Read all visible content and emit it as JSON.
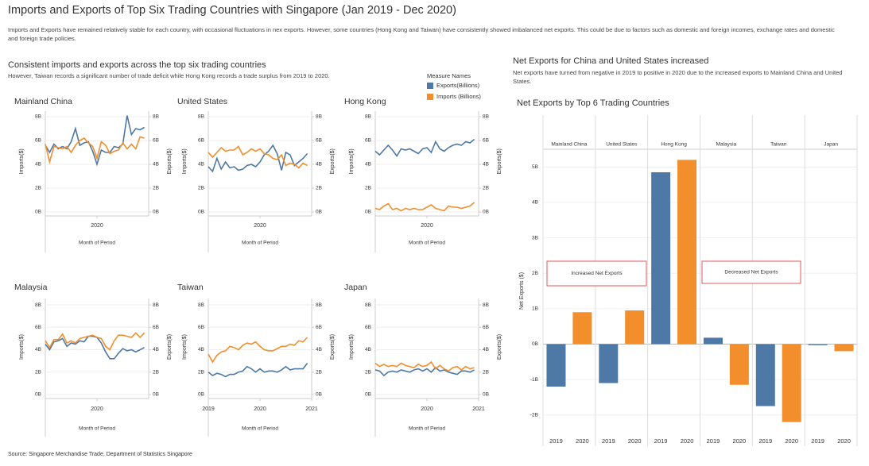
{
  "header": {
    "title": "Imports and Exports of Top Six Trading Countries with Singapore (Jan 2019 - Dec 2020)",
    "description": "Imports and Exports have remained relatively stable for each country, with occasional fluctuations in nex exports. However, some countries (Hong Kong and Taiwan) have consistently showed imbalanced net exports. This could be due to factors such as domestic and foreign incomes, exchange rates and domestic and foreign trade policies."
  },
  "left_section": {
    "title": "Consistent imports and exports across the top six trading countries",
    "subtitle": "However, Taiwan records a significant number of trade deficit while Hong Kong records a trade surplus from 2019 to 2020."
  },
  "legend": {
    "title": "Measure Names",
    "items": [
      {
        "name": "Exports(Billions)",
        "color": "#4e79a7"
      },
      {
        "name": "Imports (Billions)",
        "color": "#f28e2b"
      }
    ]
  },
  "right_section": {
    "title": "Net Exports for China and United States increased",
    "subtitle": "Net exports have turned from negative in 2019 to positive in 2020 due to the increased exports to Mainland China and United States."
  },
  "chart_data": [
    {
      "type": "line",
      "title": "Mainland China",
      "xlabel": "Month of Period",
      "ylabel": "Imports($)",
      "y2label": "Exports($)",
      "xlim": [
        2019,
        2021
      ],
      "xticks": [
        2020
      ],
      "ylim": [
        0,
        8.5
      ],
      "yticks": [
        {
          "value": 0,
          "label": "0B"
        },
        {
          "value": 2,
          "label": "2B"
        },
        {
          "value": 4,
          "label": "4B"
        },
        {
          "value": 6,
          "label": "6B"
        },
        {
          "value": 8,
          "label": "8B"
        }
      ],
      "y2lim": [
        0,
        8.5
      ],
      "y2ticks": [
        {
          "value": 0,
          "label": "0B"
        },
        {
          "value": 2,
          "label": "2B"
        },
        {
          "value": 4,
          "label": "4B"
        },
        {
          "value": 6,
          "label": "6B"
        },
        {
          "value": 8,
          "label": "8B"
        }
      ],
      "grid": true,
      "x": [
        2019.0,
        2019.083,
        2019.167,
        2019.25,
        2019.333,
        2019.417,
        2019.5,
        2019.583,
        2019.667,
        2019.75,
        2019.833,
        2019.917,
        2020.0,
        2020.083,
        2020.167,
        2020.25,
        2020.333,
        2020.417,
        2020.5,
        2020.583,
        2020.667,
        2020.75,
        2020.833,
        2020.917
      ],
      "series": [
        {
          "color": "#4e79a7",
          "axis": "y2",
          "values": [
            5.6,
            5.0,
            5.7,
            5.3,
            5.5,
            5.3,
            5.9,
            7.0,
            5.6,
            5.8,
            5.9,
            5.1,
            4.0,
            5.2,
            5.0,
            5.0,
            5.5,
            5.4,
            5.7,
            8.1,
            6.5,
            7.0,
            6.9,
            7.1
          ]
        },
        {
          "color": "#f28e2b",
          "values": [
            5.7,
            4.2,
            5.5,
            5.4,
            5.3,
            5.5,
            5.0,
            5.6,
            6.0,
            6.2,
            5.8,
            5.5,
            4.5,
            5.9,
            5.6,
            4.9,
            5.1,
            5.2,
            5.8,
            5.3,
            5.7,
            5.3,
            6.3,
            6.2
          ]
        }
      ]
    },
    {
      "type": "line",
      "title": "United States",
      "xlabel": "Month of Period",
      "ylabel": "Imports($)",
      "y2label": "Exports($)",
      "xlim": [
        2019,
        2021
      ],
      "xticks": [
        2020
      ],
      "ylim": [
        0,
        8.5
      ],
      "yticks": [
        {
          "value": 0,
          "label": "0B"
        },
        {
          "value": 2,
          "label": "2B"
        },
        {
          "value": 4,
          "label": "4B"
        },
        {
          "value": 6,
          "label": "6B"
        },
        {
          "value": 8,
          "label": "8B"
        }
      ],
      "y2lim": [
        0,
        8.5
      ],
      "y2ticks": [
        {
          "value": 0,
          "label": "0B"
        },
        {
          "value": 2,
          "label": "2B"
        },
        {
          "value": 4,
          "label": "4B"
        },
        {
          "value": 6,
          "label": "6B"
        },
        {
          "value": 8,
          "label": "8B"
        }
      ],
      "grid": true,
      "x": [
        2019.0,
        2019.083,
        2019.167,
        2019.25,
        2019.333,
        2019.417,
        2019.5,
        2019.583,
        2019.667,
        2019.75,
        2019.833,
        2019.917,
        2020.0,
        2020.083,
        2020.167,
        2020.25,
        2020.333,
        2020.417,
        2020.5,
        2020.583,
        2020.667,
        2020.75,
        2020.833,
        2020.917
      ],
      "series": [
        {
          "color": "#4e79a7",
          "axis": "y2",
          "values": [
            3.8,
            3.4,
            4.5,
            3.6,
            4.2,
            3.7,
            3.8,
            3.5,
            3.6,
            3.9,
            4.0,
            3.8,
            4.2,
            4.8,
            5.1,
            5.6,
            4.9,
            3.5,
            5.0,
            4.8,
            3.9,
            4.2,
            4.5,
            4.9
          ]
        },
        {
          "color": "#f28e2b",
          "values": [
            5.0,
            4.6,
            5.0,
            5.4,
            5.1,
            5.2,
            5.2,
            5.5,
            4.8,
            5.0,
            5.3,
            5.1,
            5.3,
            4.9,
            4.8,
            4.5,
            4.4,
            4.8,
            3.9,
            4.1,
            4.0,
            3.7,
            4.1,
            3.9
          ]
        }
      ]
    },
    {
      "type": "line",
      "title": "Hong Kong",
      "xlabel": "Month of Period",
      "ylabel": "Imports($)",
      "y2label": "Exports($)",
      "xlim": [
        2019,
        2021
      ],
      "xticks": [
        2020
      ],
      "ylim": [
        0,
        8.5
      ],
      "yticks": [
        {
          "value": 0,
          "label": "0B"
        },
        {
          "value": 2,
          "label": "2B"
        },
        {
          "value": 4,
          "label": "4B"
        },
        {
          "value": 6,
          "label": "6B"
        },
        {
          "value": 8,
          "label": "8B"
        }
      ],
      "y2lim": [
        0,
        8.5
      ],
      "y2ticks": [
        {
          "value": 0,
          "label": "0B"
        },
        {
          "value": 2,
          "label": "2B"
        },
        {
          "value": 4,
          "label": "4B"
        },
        {
          "value": 6,
          "label": "6B"
        },
        {
          "value": 8,
          "label": "8B"
        }
      ],
      "grid": true,
      "x": [
        2019.0,
        2019.083,
        2019.167,
        2019.25,
        2019.333,
        2019.417,
        2019.5,
        2019.583,
        2019.667,
        2019.75,
        2019.833,
        2019.917,
        2020.0,
        2020.083,
        2020.167,
        2020.25,
        2020.333,
        2020.417,
        2020.5,
        2020.583,
        2020.667,
        2020.75,
        2020.833,
        2020.917
      ],
      "series": [
        {
          "color": "#4e79a7",
          "axis": "y2",
          "values": [
            5.1,
            4.8,
            5.2,
            5.6,
            5.2,
            4.7,
            5.3,
            5.2,
            5.3,
            5.1,
            4.9,
            5.3,
            5.4,
            5.0,
            5.9,
            5.3,
            5.1,
            5.4,
            5.6,
            5.7,
            5.6,
            5.9,
            5.8,
            6.1
          ]
        },
        {
          "color": "#f28e2b",
          "values": [
            0.3,
            0.2,
            0.5,
            0.7,
            0.2,
            0.3,
            0.1,
            0.3,
            0.2,
            0.3,
            0.2,
            0.2,
            0.4,
            0.6,
            0.3,
            0.2,
            0.1,
            0.5,
            0.4,
            0.4,
            0.3,
            0.4,
            0.5,
            0.8
          ]
        }
      ]
    },
    {
      "type": "line",
      "title": "Malaysia",
      "xlabel": "Month of Period",
      "ylabel": "Imports($)",
      "y2label": "Exports($)",
      "xlim": [
        2019,
        2021
      ],
      "xticks": [
        2020
      ],
      "ylim": [
        0,
        8.5
      ],
      "yticks": [
        {
          "value": 0,
          "label": "0B"
        },
        {
          "value": 2,
          "label": "2B"
        },
        {
          "value": 4,
          "label": "4B"
        },
        {
          "value": 6,
          "label": "6B"
        },
        {
          "value": 8,
          "label": "8B"
        }
      ],
      "y2lim": [
        0,
        8.5
      ],
      "y2ticks": [
        {
          "value": 0,
          "label": "0B"
        },
        {
          "value": 2,
          "label": "2B"
        },
        {
          "value": 4,
          "label": "4B"
        },
        {
          "value": 6,
          "label": "6B"
        },
        {
          "value": 8,
          "label": "8B"
        }
      ],
      "grid": true,
      "x": [
        2019.0,
        2019.083,
        2019.167,
        2019.25,
        2019.333,
        2019.417,
        2019.5,
        2019.583,
        2019.667,
        2019.75,
        2019.833,
        2019.917,
        2020.0,
        2020.083,
        2020.167,
        2020.25,
        2020.333,
        2020.417,
        2020.5,
        2020.583,
        2020.667,
        2020.75,
        2020.833,
        2020.917
      ],
      "series": [
        {
          "color": "#4e79a7",
          "axis": "y2",
          "values": [
            4.5,
            4.0,
            4.7,
            4.8,
            5.0,
            4.3,
            4.6,
            4.5,
            4.8,
            4.7,
            5.2,
            5.2,
            5.1,
            4.6,
            3.8,
            3.2,
            3.2,
            3.7,
            4.1,
            3.9,
            4.0,
            3.8,
            4.0,
            4.2
          ]
        },
        {
          "color": "#f28e2b",
          "values": [
            4.8,
            4.2,
            4.9,
            4.9,
            5.4,
            4.6,
            4.8,
            4.6,
            5.0,
            5.1,
            5.2,
            5.3,
            5.1,
            5.0,
            4.3,
            4.0,
            4.8,
            5.3,
            5.3,
            5.2,
            5.1,
            5.5,
            5.1,
            5.5
          ]
        }
      ]
    },
    {
      "type": "line",
      "title": "Taiwan",
      "xlabel": "Month of Period",
      "ylabel": "Imports($)",
      "y2label": "Exports($)",
      "xlim": [
        2019,
        2021
      ],
      "xticks": [
        2019,
        2020,
        2021
      ],
      "ylim": [
        0,
        8.5
      ],
      "yticks": [
        {
          "value": 0,
          "label": "0B"
        },
        {
          "value": 2,
          "label": "2B"
        },
        {
          "value": 4,
          "label": "4B"
        },
        {
          "value": 6,
          "label": "6B"
        },
        {
          "value": 8,
          "label": "8B"
        }
      ],
      "y2lim": [
        0,
        8.5
      ],
      "y2ticks": [
        {
          "value": 0,
          "label": "0B"
        },
        {
          "value": 2,
          "label": "2B"
        },
        {
          "value": 4,
          "label": "4B"
        },
        {
          "value": 6,
          "label": "6B"
        },
        {
          "value": 8,
          "label": "8B"
        }
      ],
      "grid": true,
      "x": [
        2019.0,
        2019.083,
        2019.167,
        2019.25,
        2019.333,
        2019.417,
        2019.5,
        2019.583,
        2019.667,
        2019.75,
        2019.833,
        2019.917,
        2020.0,
        2020.083,
        2020.167,
        2020.25,
        2020.333,
        2020.417,
        2020.5,
        2020.583,
        2020.667,
        2020.75,
        2020.833,
        2020.917
      ],
      "series": [
        {
          "color": "#4e79a7",
          "axis": "y2",
          "values": [
            2.0,
            1.7,
            1.9,
            1.8,
            1.6,
            1.8,
            1.8,
            2.0,
            2.1,
            2.5,
            2.3,
            2.0,
            2.3,
            2.0,
            2.1,
            2.1,
            2.0,
            2.2,
            2.5,
            2.2,
            2.3,
            2.3,
            2.3,
            2.8
          ]
        },
        {
          "color": "#f28e2b",
          "values": [
            3.6,
            2.9,
            3.5,
            3.8,
            3.9,
            4.3,
            4.2,
            4.0,
            4.4,
            4.6,
            4.5,
            4.7,
            4.3,
            4.0,
            3.9,
            3.9,
            4.1,
            4.3,
            4.3,
            4.5,
            4.4,
            4.8,
            4.7,
            5.1
          ]
        }
      ]
    },
    {
      "type": "line",
      "title": "Japan",
      "xlabel": "Month of Period",
      "ylabel": "Imports($)",
      "y2label": "Exports($)",
      "xlim": [
        2019,
        2021
      ],
      "xticks": [
        2020,
        2021
      ],
      "ylim": [
        0,
        8.5
      ],
      "yticks": [
        {
          "value": 0,
          "label": "0B"
        },
        {
          "value": 2,
          "label": "2B"
        },
        {
          "value": 4,
          "label": "4B"
        },
        {
          "value": 6,
          "label": "6B"
        },
        {
          "value": 8,
          "label": "8B"
        }
      ],
      "y2lim": [
        0,
        8.5
      ],
      "y2ticks": [
        {
          "value": 0,
          "label": "0B"
        },
        {
          "value": 2,
          "label": "2B"
        },
        {
          "value": 4,
          "label": "4B"
        },
        {
          "value": 6,
          "label": "6B"
        },
        {
          "value": 8,
          "label": "8B"
        }
      ],
      "grid": true,
      "x": [
        2019.0,
        2019.083,
        2019.167,
        2019.25,
        2019.333,
        2019.417,
        2019.5,
        2019.583,
        2019.667,
        2019.75,
        2019.833,
        2019.917,
        2020.0,
        2020.083,
        2020.167,
        2020.25,
        2020.333,
        2020.417,
        2020.5,
        2020.583,
        2020.667,
        2020.75,
        2020.833,
        2020.917
      ],
      "series": [
        {
          "color": "#4e79a7",
          "axis": "y2",
          "values": [
            2.2,
            2.1,
            1.7,
            2.0,
            2.1,
            2.0,
            2.2,
            2.1,
            2.0,
            2.2,
            2.3,
            2.1,
            2.3,
            2.0,
            2.4,
            2.1,
            2.2,
            2.0,
            1.9,
            1.8,
            2.1,
            2.1,
            2.0,
            2.2
          ]
        },
        {
          "color": "#f28e2b",
          "values": [
            2.8,
            2.5,
            2.7,
            2.5,
            2.6,
            2.5,
            2.8,
            2.6,
            2.5,
            2.4,
            2.7,
            2.5,
            2.6,
            2.9,
            2.3,
            2.6,
            2.3,
            2.1,
            2.4,
            2.5,
            2.2,
            2.5,
            2.3,
            2.4
          ]
        }
      ]
    },
    {
      "type": "bar",
      "title": "Net Exports by Top 6 Trading Countries",
      "ylabel": "Net Exports ($)",
      "categories": [
        "Mainland China",
        "United States",
        "Hong Kong",
        "Malaysia",
        "Taiwan",
        "Japan"
      ],
      "ylim": [
        -2.5,
        5.5
      ],
      "yticks": [
        {
          "value": -2,
          "label": "-2B"
        },
        {
          "value": -1,
          "label": "-1B"
        },
        {
          "value": 0,
          "label": "0B"
        },
        {
          "value": 1,
          "label": "1B"
        },
        {
          "value": 2,
          "label": "2B"
        },
        {
          "value": 3,
          "label": "3B"
        },
        {
          "value": 4,
          "label": "4B"
        },
        {
          "value": 5,
          "label": "5B"
        }
      ],
      "grid": true,
      "series": [
        {
          "name": "2019",
          "color": "#4e79a7",
          "values": [
            -1.2,
            -1.1,
            4.85,
            0.18,
            -1.75,
            -0.03
          ]
        },
        {
          "name": "2020",
          "color": "#f28e2b",
          "values": [
            0.9,
            0.95,
            5.2,
            -1.15,
            -2.2,
            -0.2
          ]
        }
      ],
      "annotations": [
        {
          "text": "Increased Net Exports"
        },
        {
          "text": "Decreased Net Exports"
        }
      ]
    }
  ],
  "footer": {
    "source": "Source: Singapore Merchandise Trade, Department of Statistics Singapore"
  }
}
